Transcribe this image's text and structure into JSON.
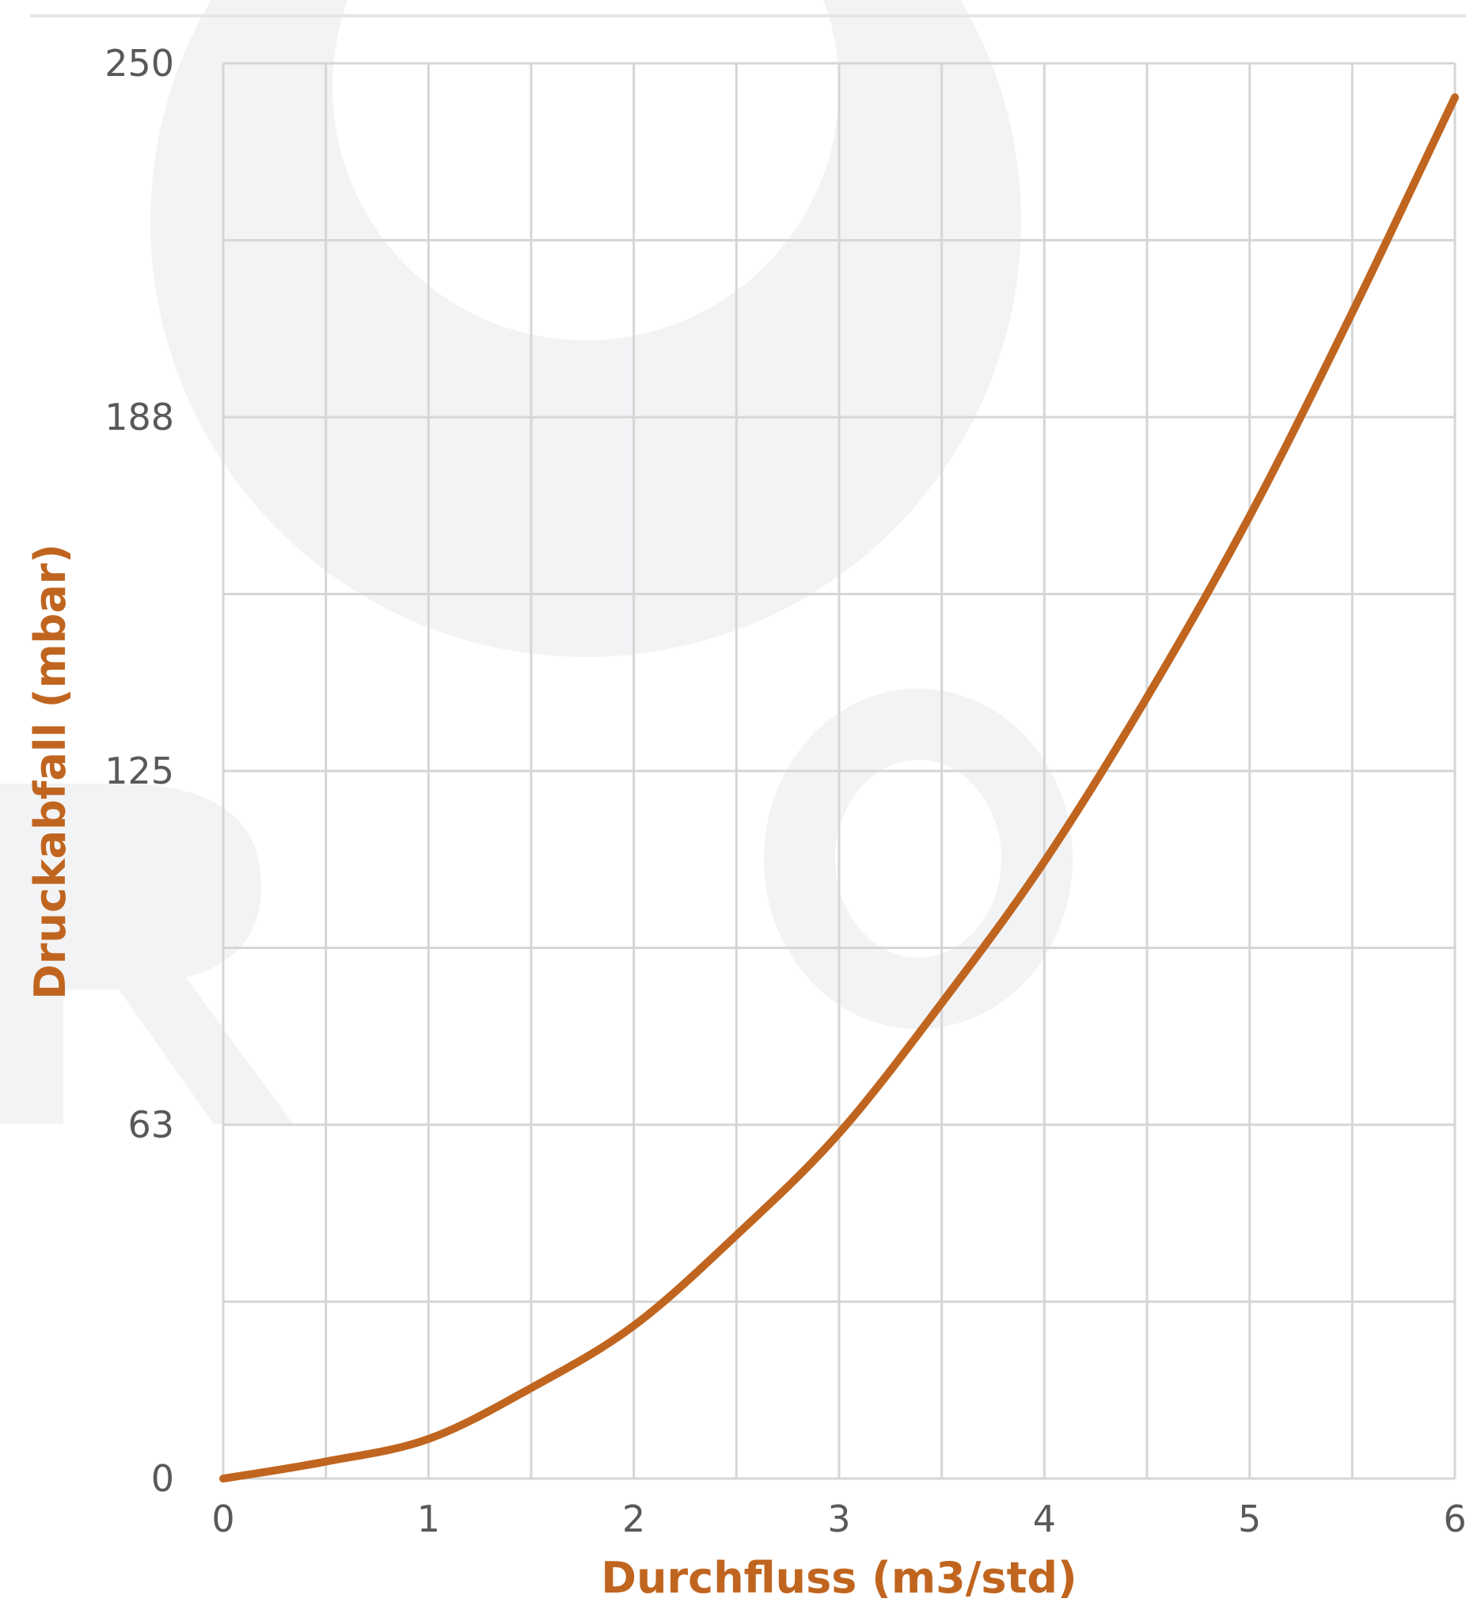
{
  "chart_data": {
    "type": "line",
    "title": "",
    "xlabel": "Durchfluss (m3/std)",
    "ylabel": "Druckabfall  (mbar)",
    "xlim": [
      0,
      6
    ],
    "ylim": [
      0,
      250
    ],
    "x_ticks": [
      "0",
      "1",
      "2",
      "3",
      "4",
      "5",
      "6"
    ],
    "y_ticks": [
      "0",
      "63",
      "125",
      "188",
      "250"
    ],
    "grid": true,
    "x_minor_step": 0.5,
    "y_minor_step": 31.25,
    "series": [
      {
        "color": "#c0651f",
        "x": [
          0,
          0.5,
          1,
          1.5,
          2,
          2.5,
          3,
          3.5,
          4,
          4.5,
          5,
          5.5,
          6
        ],
        "y": [
          0,
          3,
          7,
          16,
          27,
          43,
          61,
          84,
          109,
          138,
          170,
          206,
          244
        ]
      }
    ]
  },
  "colors": {
    "series": "#c0651f",
    "axis_title": "#c0651f",
    "grid": "#d6d6d6",
    "tick_label": "#595959",
    "watermark": "#f2f3f5"
  }
}
